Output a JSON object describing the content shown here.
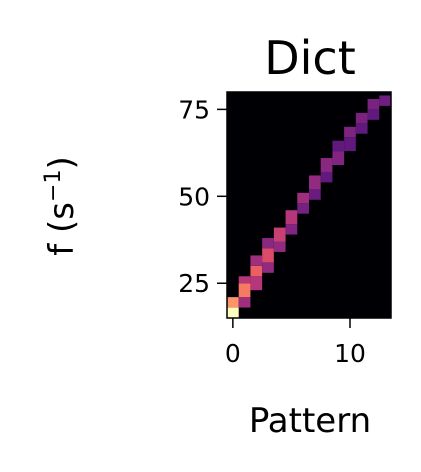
{
  "chart_data": {
    "type": "heatmap",
    "title": "Dict",
    "xlabel": "Pattern",
    "ylabel": "f (s",
    "ylabel_superscript": "−1",
    "ylabel_close": ")",
    "x_ticks": [
      0,
      10
    ],
    "y_ticks": [
      25,
      50,
      75
    ],
    "xlim": [
      -0.5,
      13.5
    ],
    "ylim": [
      15,
      80
    ],
    "colormap": "magma",
    "background_value": 0.0,
    "patterns": [
      0,
      1,
      2,
      3,
      4,
      5,
      6,
      7,
      8,
      9,
      10,
      11,
      12,
      13
    ],
    "cells": [
      {
        "pattern": 0,
        "f_min": 15,
        "f_max": 18,
        "value": 1.0
      },
      {
        "pattern": 0,
        "f_min": 18,
        "f_max": 21,
        "value": 0.78
      },
      {
        "pattern": 1,
        "f_min": 18,
        "f_max": 21,
        "value": 0.45
      },
      {
        "pattern": 1,
        "f_min": 21,
        "f_max": 25,
        "value": 0.72
      },
      {
        "pattern": 1,
        "f_min": 25,
        "f_max": 27,
        "value": 0.5
      },
      {
        "pattern": 2,
        "f_min": 23,
        "f_max": 27,
        "value": 0.5
      },
      {
        "pattern": 2,
        "f_min": 27,
        "f_max": 30,
        "value": 0.66
      },
      {
        "pattern": 2,
        "f_min": 30,
        "f_max": 33,
        "value": 0.45
      },
      {
        "pattern": 3,
        "f_min": 28,
        "f_max": 31,
        "value": 0.42
      },
      {
        "pattern": 3,
        "f_min": 31,
        "f_max": 35,
        "value": 0.6
      },
      {
        "pattern": 3,
        "f_min": 35,
        "f_max": 38,
        "value": 0.4
      },
      {
        "pattern": 4,
        "f_min": 34,
        "f_max": 37,
        "value": 0.42
      },
      {
        "pattern": 4,
        "f_min": 37,
        "f_max": 41,
        "value": 0.55
      },
      {
        "pattern": 5,
        "f_min": 39,
        "f_max": 42,
        "value": 0.38
      },
      {
        "pattern": 5,
        "f_min": 42,
        "f_max": 46,
        "value": 0.5
      },
      {
        "pattern": 6,
        "f_min": 45,
        "f_max": 48,
        "value": 0.35
      },
      {
        "pattern": 6,
        "f_min": 48,
        "f_max": 51,
        "value": 0.45
      },
      {
        "pattern": 7,
        "f_min": 49,
        "f_max": 52,
        "value": 0.32
      },
      {
        "pattern": 7,
        "f_min": 52,
        "f_max": 56,
        "value": 0.42
      },
      {
        "pattern": 8,
        "f_min": 54,
        "f_max": 57,
        "value": 0.3
      },
      {
        "pattern": 8,
        "f_min": 57,
        "f_max": 61,
        "value": 0.4
      },
      {
        "pattern": 9,
        "f_min": 59,
        "f_max": 63,
        "value": 0.38
      },
      {
        "pattern": 9,
        "f_min": 63,
        "f_max": 66,
        "value": 0.3
      },
      {
        "pattern": 10,
        "f_min": 63,
        "f_max": 67,
        "value": 0.3
      },
      {
        "pattern": 10,
        "f_min": 67,
        "f_max": 70,
        "value": 0.37
      },
      {
        "pattern": 11,
        "f_min": 68,
        "f_max": 71,
        "value": 0.3
      },
      {
        "pattern": 11,
        "f_min": 71,
        "f_max": 74,
        "value": 0.36
      },
      {
        "pattern": 12,
        "f_min": 72,
        "f_max": 75,
        "value": 0.3
      },
      {
        "pattern": 12,
        "f_min": 75,
        "f_max": 78,
        "value": 0.36
      },
      {
        "pattern": 13,
        "f_min": 76,
        "f_max": 79,
        "value": 0.33
      }
    ]
  }
}
